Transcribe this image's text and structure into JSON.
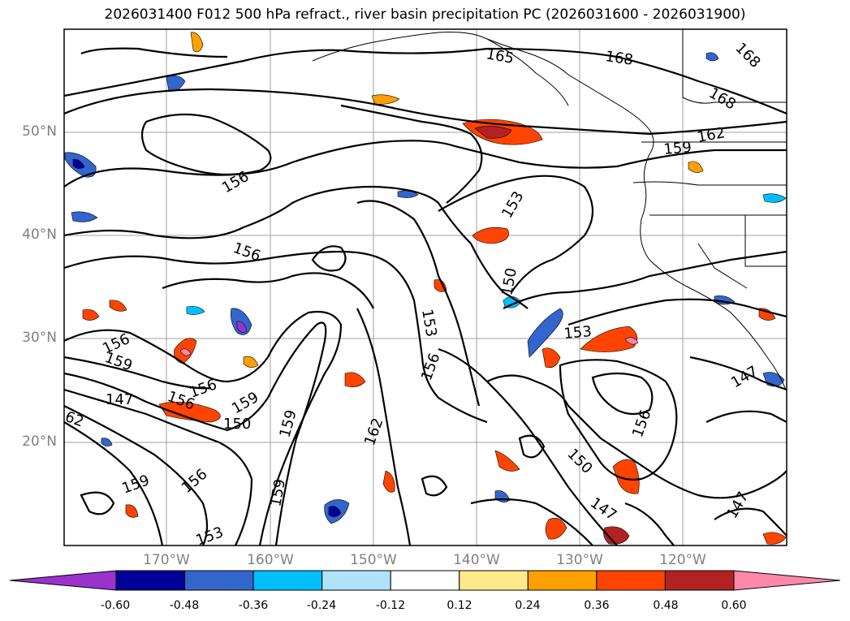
{
  "title": "2026031400 F012 500 hPa refract., river basin precipitation PC (2026031600 - 2026031900)",
  "lat_ticks": [
    "50°N",
    "40°N",
    "30°N",
    "20°N"
  ],
  "lon_ticks": [
    "170°W",
    "160°W",
    "150°W",
    "140°W",
    "130°W",
    "120°W"
  ],
  "contour_labels": [
    "165",
    "168",
    "168",
    "168",
    "162",
    "159",
    "156",
    "153",
    "150",
    "156",
    "156",
    "159",
    "147",
    "62",
    "156",
    "159",
    "150",
    "159",
    "156",
    "159",
    "162",
    "159",
    "156",
    "153",
    "153",
    "150",
    "147",
    "156",
    "147",
    "147",
    "156",
    "153"
  ],
  "colorbar": {
    "labels": [
      "-0.60",
      "-0.48",
      "-0.36",
      "-0.24",
      "-0.12",
      "0.12",
      "0.24",
      "0.36",
      "0.48",
      "0.60"
    ],
    "colors": [
      "#9933cc",
      "#000099",
      "#3366cc",
      "#00bfff",
      "#aee3fa",
      "#ffffff",
      "#ffe98a",
      "#ff9f00",
      "#ff4400",
      "#b22222",
      "#ff88aa"
    ]
  }
}
